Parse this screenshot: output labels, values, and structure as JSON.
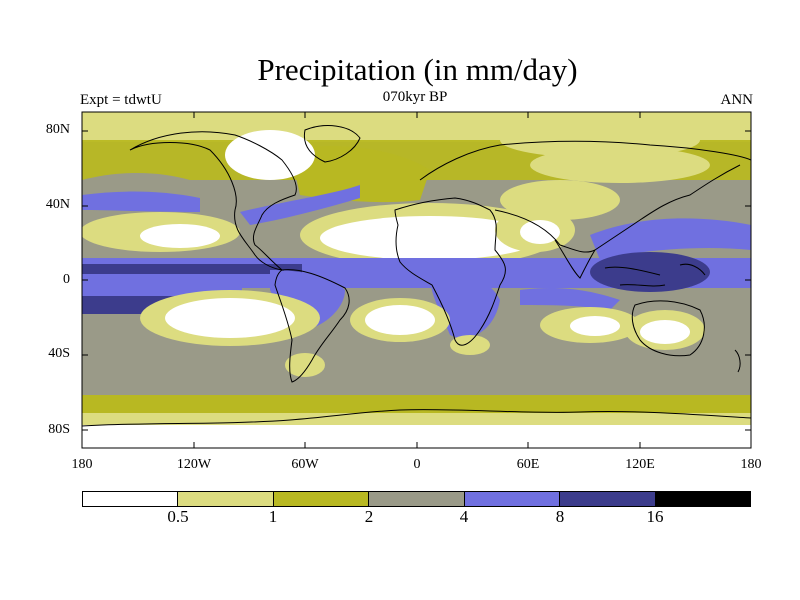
{
  "title": "Precipitation (in mm/day)",
  "expt_label": "Expt = tdwtU",
  "period_label": "070kyr BP",
  "season_label": "ANN",
  "lat_ticks": [
    "80N",
    "40N",
    "0",
    "40S",
    "80S"
  ],
  "lon_ticks": [
    "180",
    "120W",
    "60W",
    "0",
    "60E",
    "120E",
    "180"
  ],
  "legend": {
    "thresholds": [
      "0.5",
      "1",
      "2",
      "4",
      "8",
      "16"
    ],
    "colors": [
      "#ffffff",
      "#dcdc80",
      "#b8b822",
      "#9a9a88",
      "#7070e0",
      "#3c3c8c",
      "#000000"
    ]
  },
  "palette": {
    "white": "#ffffff",
    "light_yellow": "#dcdc80",
    "olive": "#b8b822",
    "gray": "#9a9a88",
    "blue": "#7070e0",
    "dark_blue": "#3c3c8c",
    "black": "#000000",
    "coast": "#000000"
  }
}
